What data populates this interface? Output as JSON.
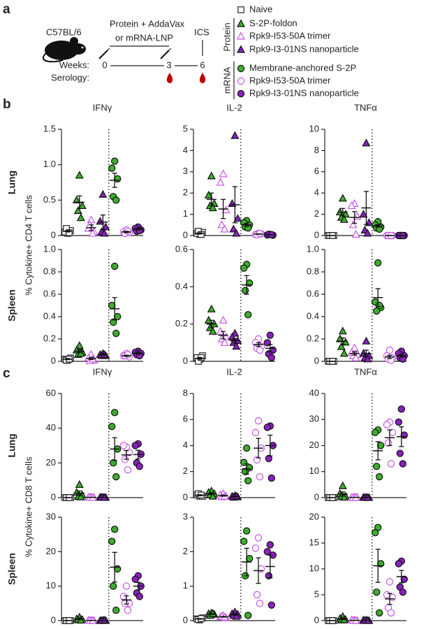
{
  "schematic": {
    "label": "a",
    "strain": "C57BL/6",
    "protein": "Protein + AddaVax",
    "mrna": "or mRNA-LNP",
    "ics": "ICS",
    "weeks_label": "Weeks:",
    "serology_label": "Serology:",
    "weeks": [
      0,
      3,
      6
    ]
  },
  "legend": {
    "protein_label": "Protein",
    "mrna_label": "mRNA",
    "groups": [
      {
        "name": "Naive",
        "color": "#222222",
        "marker": "square",
        "filled": false
      },
      {
        "name": "S-2P-foldon",
        "color": "#3dae2b",
        "marker": "triangle",
        "filled": true
      },
      {
        "name": "Rpk9-I53-50A trimer",
        "color": "#c855e8",
        "marker": "triangle",
        "filled": false
      },
      {
        "name": "Rpk9-I3-01NS nanoparticle",
        "color": "#8a1fc0",
        "marker": "triangle",
        "filled": true
      },
      {
        "name": "Membrane-anchored S-2P",
        "color": "#3dae2b",
        "marker": "circle",
        "filled": true
      },
      {
        "name": "Rpk9-I53-50A trimer",
        "color": "#c855e8",
        "marker": "circle",
        "filled": false
      },
      {
        "name": "Rpk9-I3-01NS nanoparticle",
        "color": "#8a1fc0",
        "marker": "circle",
        "filled": true
      }
    ]
  },
  "panels": [
    {
      "label": "b",
      "ylabel": "% Cytokine+ CD4 T cells",
      "rows": [
        "Lung",
        "Spleen"
      ]
    },
    {
      "label": "c",
      "ylabel": "% Cytokine+ CD8 T cells",
      "rows": [
        "Lung",
        "Spleen"
      ]
    }
  ],
  "chart_data": [
    {
      "type": "scatter",
      "title": "IFNγ",
      "ylim": [
        0,
        1.5
      ],
      "yticks": [
        0,
        0.5,
        {
          "value": 1,
          "label": "1.0"
        },
        1.5
      ],
      "series": [
        {
          "values": [
            0.03,
            0.05,
            0.07,
            0.1,
            0.04
          ],
          "mean": 0.06,
          "sem": 0.01
        },
        {
          "values": [
            0.85,
            0.5,
            0.42,
            0.35,
            0.25
          ],
          "mean": 0.47,
          "sem": 0.09
        },
        {
          "values": [
            0.22,
            0.1,
            0.05,
            0.15,
            0.03
          ],
          "mean": 0.11,
          "sem": 0.04
        },
        {
          "values": [
            0.58,
            0.2,
            0.12,
            0.05,
            0.03
          ],
          "mean": 0.19,
          "sem": 0.1
        },
        {
          "values": [
            1.05,
            0.95,
            0.8,
            0.55,
            0.5
          ],
          "mean": 0.78,
          "sem": 0.1
        },
        {
          "values": [
            0.08,
            0.05,
            0.04,
            0.03,
            0.06
          ],
          "mean": 0.05,
          "sem": 0.01
        },
        {
          "values": [
            0.12,
            0.1,
            0.08,
            0.06,
            0.07
          ],
          "mean": 0.09,
          "sem": 0.01
        }
      ]
    },
    {
      "type": "scatter",
      "title": "IL-2",
      "ylim": [
        0,
        5
      ],
      "yticks": [
        0,
        1,
        2,
        3,
        4,
        5
      ],
      "series": [
        {
          "values": [
            0.05,
            0.1,
            0.15,
            0.2,
            0.05
          ],
          "mean": 0.1,
          "sem": 0.03
        },
        {
          "values": [
            2.8,
            1.9,
            1.5,
            1.4,
            1.3
          ],
          "mean": 1.7,
          "sem": 0.3
        },
        {
          "values": [
            2.9,
            2.5,
            1.2,
            0.5,
            0.3
          ],
          "mean": 1.25,
          "sem": 0.45
        },
        {
          "values": [
            4.7,
            1.5,
            0.8,
            0.3,
            0.1
          ],
          "mean": 1.45,
          "sem": 0.85
        },
        {
          "values": [
            0.7,
            0.6,
            0.5,
            0.4,
            0.35
          ],
          "mean": 0.5,
          "sem": 0.07
        },
        {
          "values": [
            0.1,
            0.05,
            0.08,
            0.03,
            0.1
          ],
          "mean": 0.07,
          "sem": 0.01
        },
        {
          "values": [
            0.05,
            0.03,
            0.02,
            0.06,
            0.04
          ],
          "mean": 0.04,
          "sem": 0.01
        }
      ]
    },
    {
      "type": "scatter",
      "title": "TNFα",
      "ylim": [
        0,
        10
      ],
      "yticks": [
        0,
        2,
        4,
        6,
        8,
        10
      ],
      "series": [
        {
          "values": [
            0,
            0,
            0,
            0,
            0
          ],
          "mean": 0,
          "sem": 0
        },
        {
          "values": [
            3.5,
            2.2,
            2.0,
            1.7,
            1.5
          ],
          "mean": 2.2,
          "sem": 0.35
        },
        {
          "values": [
            3.0,
            2.8,
            1.8,
            1.0,
            0.1
          ],
          "mean": 1.7,
          "sem": 0.55
        },
        {
          "values": [
            8.7,
            2.0,
            1.2,
            0.5,
            0.2
          ],
          "mean": 2.6,
          "sem": 1.55
        },
        {
          "values": [
            1.3,
            1.0,
            0.8,
            0.7,
            0.6
          ],
          "mean": 0.9,
          "sem": 0.12
        },
        {
          "values": [
            0,
            0,
            0,
            0,
            0
          ],
          "mean": 0,
          "sem": 0
        },
        {
          "values": [
            0,
            0,
            0,
            0,
            0
          ],
          "mean": 0,
          "sem": 0
        }
      ]
    },
    {
      "type": "scatter",
      "ylim": [
        0,
        1
      ],
      "yticks": [
        0,
        0.2,
        0.4,
        0.6,
        0.8,
        {
          "value": 1,
          "label": "1.0"
        }
      ],
      "series": [
        {
          "values": [
            0.01,
            0.02,
            0.03,
            0.01,
            0.02
          ],
          "mean": 0.02,
          "sem": 0.005
        },
        {
          "values": [
            0.14,
            0.1,
            0.08,
            0.06,
            0.07
          ],
          "mean": 0.09,
          "sem": 0.015
        },
        {
          "values": [
            0.06,
            0.03,
            0.01,
            0.005,
            0.02
          ],
          "mean": 0.025,
          "sem": 0.01
        },
        {
          "values": [
            0.07,
            0.06,
            0.05,
            0.05,
            0.06
          ],
          "mean": 0.06,
          "sem": 0.005
        },
        {
          "values": [
            0.85,
            0.5,
            0.4,
            0.35,
            0.25
          ],
          "mean": 0.47,
          "sem": 0.1
        },
        {
          "values": [
            0.07,
            0.05,
            0.04,
            0.05,
            0.06
          ],
          "mean": 0.05,
          "sem": 0.005
        },
        {
          "values": [
            0.09,
            0.08,
            0.07,
            0.06,
            0.05
          ],
          "mean": 0.07,
          "sem": 0.007
        }
      ]
    },
    {
      "type": "scatter",
      "ylim": [
        0,
        0.6
      ],
      "yticks": [
        0,
        0.2,
        0.4,
        0.6
      ],
      "series": [
        {
          "values": [
            0.01,
            0.02,
            0.03,
            0.0,
            0.02
          ],
          "mean": 0.016,
          "sem": 0.005
        },
        {
          "values": [
            0.28,
            0.22,
            0.2,
            0.18,
            0.16
          ],
          "mean": 0.2,
          "sem": 0.02
        },
        {
          "values": [
            0.22,
            0.16,
            0.13,
            0.12,
            0.1
          ],
          "mean": 0.14,
          "sem": 0.02
        },
        {
          "values": [
            0.15,
            0.13,
            0.11,
            0.1,
            0.08
          ],
          "mean": 0.11,
          "sem": 0.012
        },
        {
          "values": [
            0.52,
            0.5,
            0.42,
            0.38,
            0.25
          ],
          "mean": 0.41,
          "sem": 0.05
        },
        {
          "values": [
            0.12,
            0.1,
            0.08,
            0.07,
            0.06
          ],
          "mean": 0.09,
          "sem": 0.01
        },
        {
          "values": [
            0.14,
            0.1,
            0.06,
            0.04,
            0.02
          ],
          "mean": 0.07,
          "sem": 0.02
        }
      ]
    },
    {
      "type": "scatter",
      "ylim": [
        0,
        1
      ],
      "yticks": [
        0,
        0.2,
        0.4,
        0.6,
        0.8,
        {
          "value": 1,
          "label": "1.0"
        }
      ],
      "series": [
        {
          "values": [
            0,
            0,
            0,
            0,
            0
          ],
          "mean": 0,
          "sem": 0
        },
        {
          "values": [
            0.27,
            0.2,
            0.17,
            0.13,
            0.07
          ],
          "mean": 0.18,
          "sem": 0.03
        },
        {
          "values": [
            0.12,
            0.08,
            0.06,
            0.05,
            0.03
          ],
          "mean": 0.07,
          "sem": 0.015
        },
        {
          "values": [
            0.18,
            0.07,
            0.05,
            0.03,
            0.02
          ],
          "mean": 0.07,
          "sem": 0.03
        },
        {
          "values": [
            0.88,
            0.53,
            0.48,
            0.45,
            0.5
          ],
          "mean": 0.57,
          "sem": 0.08
        },
        {
          "values": [
            0.1,
            0.05,
            0.03,
            0.02,
            0.01
          ],
          "mean": 0.04,
          "sem": 0.015
        },
        {
          "values": [
            0.09,
            0.07,
            0.05,
            0.03,
            0.02
          ],
          "mean": 0.05,
          "sem": 0.013
        }
      ]
    },
    {
      "type": "scatter",
      "title": "IFNγ",
      "ylim": [
        0,
        60
      ],
      "yticks": [
        0,
        20,
        40,
        60
      ],
      "series": [
        {
          "values": [
            0,
            0,
            0,
            0,
            0
          ],
          "mean": 0,
          "sem": 0
        },
        {
          "values": [
            7.5,
            3,
            1.5,
            0.5,
            0.3
          ],
          "mean": 2.5,
          "sem": 1.3
        },
        {
          "values": [
            0.3,
            0.2,
            0.1,
            0.1,
            0
          ],
          "mean": 0.14,
          "sem": 0.05
        },
        {
          "values": [
            0.2,
            0.2,
            0.1,
            0.1,
            0
          ],
          "mean": 0.12,
          "sem": 0.04
        },
        {
          "values": [
            49,
            41,
            28,
            20,
            12
          ],
          "mean": 28,
          "sem": 6.5
        },
        {
          "values": [
            29,
            30,
            26,
            22,
            16
          ],
          "mean": 24.6,
          "sem": 2.5
        },
        {
          "values": [
            31,
            30,
            25,
            20,
            18
          ],
          "mean": 24.8,
          "sem": 2.5
        }
      ]
    },
    {
      "type": "scatter",
      "title": "IL-2",
      "ylim": [
        0,
        8
      ],
      "yticks": [
        0,
        2,
        4,
        6,
        8
      ],
      "series": [
        {
          "values": [
            0.1,
            0.2,
            0.1,
            0.3,
            0.2
          ],
          "mean": 0.18,
          "sem": 0.04
        },
        {
          "values": [
            0.5,
            0.4,
            0.3,
            0.2,
            0.1
          ],
          "mean": 0.3,
          "sem": 0.07
        },
        {
          "values": [
            0.3,
            0.2,
            0.1,
            0.05,
            0.1
          ],
          "mean": 0.15,
          "sem": 0.04
        },
        {
          "values": [
            0.15,
            0.1,
            0.05,
            0.02,
            0.1
          ],
          "mean": 0.08,
          "sem": 0.02
        },
        {
          "values": [
            3.8,
            2.7,
            2.3,
            2.0,
            1.3
          ],
          "mean": 2.2,
          "sem": 0.4
        },
        {
          "values": [
            5.9,
            5.0,
            3.8,
            2.9,
            1.6
          ],
          "mean": 3.8,
          "sem": 0.75
        },
        {
          "values": [
            5.5,
            5.4,
            4.0,
            3.0,
            1.5
          ],
          "mean": 4.0,
          "sem": 0.8
        }
      ]
    },
    {
      "type": "scatter",
      "title": "TNFα",
      "ylim": [
        0,
        40
      ],
      "yticks": [
        0,
        10,
        20,
        30,
        40
      ],
      "series": [
        {
          "values": [
            0,
            0,
            0,
            0,
            0
          ],
          "mean": 0,
          "sem": 0
        },
        {
          "values": [
            4.5,
            1.5,
            0.5,
            0.3,
            0.1
          ],
          "mean": 1.4,
          "sem": 0.8
        },
        {
          "values": [
            0.2,
            0.1,
            0.1,
            0,
            0
          ],
          "mean": 0.08,
          "sem": 0.04
        },
        {
          "values": [
            0.1,
            0.1,
            0,
            0,
            0
          ],
          "mean": 0.04,
          "sem": 0.02
        },
        {
          "values": [
            26,
            25,
            20,
            12,
            8
          ],
          "mean": 18,
          "sem": 3.5
        },
        {
          "values": [
            29,
            28,
            25,
            21,
            13
          ],
          "mean": 23,
          "sem": 3
        },
        {
          "values": [
            34,
            29,
            24,
            17,
            13
          ],
          "mean": 23.4,
          "sem": 3.8
        }
      ]
    },
    {
      "type": "scatter",
      "ylim": [
        0,
        30
      ],
      "yticks": [
        0,
        10,
        20,
        30
      ],
      "series": [
        {
          "values": [
            0,
            0,
            0,
            0,
            0
          ],
          "mean": 0,
          "sem": 0
        },
        {
          "values": [
            1,
            0.5,
            0.3,
            0.2,
            0.1
          ],
          "mean": 0.42,
          "sem": 0.16
        },
        {
          "values": [
            0.1,
            0.1,
            0,
            0,
            0
          ],
          "mean": 0.04,
          "sem": 0.02
        },
        {
          "values": [
            0.1,
            0,
            0,
            0,
            0.1
          ],
          "mean": 0.04,
          "sem": 0.02
        },
        {
          "values": [
            26.5,
            23,
            15,
            10,
            3
          ],
          "mean": 15.5,
          "sem": 4.3
        },
        {
          "values": [
            10,
            7,
            5,
            5,
            3
          ],
          "mean": 6,
          "sem": 1.2
        },
        {
          "values": [
            13,
            12,
            10,
            8,
            7
          ],
          "mean": 10,
          "sem": 1.1
        }
      ]
    },
    {
      "type": "scatter",
      "ylim": [
        0,
        3
      ],
      "yticks": [
        0,
        1,
        2,
        3
      ],
      "series": [
        {
          "values": [
            0.02,
            0.05,
            0.08,
            0.03,
            0.06
          ],
          "mean": 0.05,
          "sem": 0.01
        },
        {
          "values": [
            0.22,
            0.2,
            0.18,
            0.15,
            0.2
          ],
          "mean": 0.19,
          "sem": 0.01
        },
        {
          "values": [
            0.15,
            0.1,
            0.08,
            0.12,
            0.1
          ],
          "mean": 0.11,
          "sem": 0.01
        },
        {
          "values": [
            0.25,
            0.2,
            0.18,
            0.15,
            0.12
          ],
          "mean": 0.18,
          "sem": 0.02
        },
        {
          "values": [
            2.6,
            2.3,
            1.8,
            1.3,
            0.15
          ],
          "mean": 1.7,
          "sem": 0.4
        },
        {
          "values": [
            2.4,
            2.1,
            1.5,
            0.75,
            0.5
          ],
          "mean": 1.45,
          "sem": 0.37
        },
        {
          "values": [
            2.2,
            2.0,
            1.9,
            1.3,
            0.45
          ],
          "mean": 1.57,
          "sem": 0.33
        }
      ]
    },
    {
      "type": "scatter",
      "ylim": [
        0,
        20
      ],
      "yticks": [
        0,
        5,
        10,
        15,
        20
      ],
      "series": [
        {
          "values": [
            0,
            0,
            0,
            0,
            0
          ],
          "mean": 0,
          "sem": 0
        },
        {
          "values": [
            0.8,
            0.4,
            0.2,
            0.1,
            0.1
          ],
          "mean": 0.32,
          "sem": 0.13
        },
        {
          "values": [
            0.1,
            0.1,
            0,
            0,
            0
          ],
          "mean": 0.04,
          "sem": 0.02
        },
        {
          "values": [
            0.1,
            0.1,
            0,
            0,
            0
          ],
          "mean": 0.04,
          "sem": 0.02
        },
        {
          "values": [
            18,
            17,
            11,
            5.5,
            1.5
          ],
          "mean": 10.6,
          "sem": 3.2
        },
        {
          "values": [
            7.5,
            5,
            4.5,
            2.5,
            1.5
          ],
          "mean": 4.2,
          "sem": 1.05
        },
        {
          "values": [
            11.5,
            11,
            8,
            6.5,
            5.5
          ],
          "mean": 8.5,
          "sem": 1.2
        }
      ]
    }
  ]
}
